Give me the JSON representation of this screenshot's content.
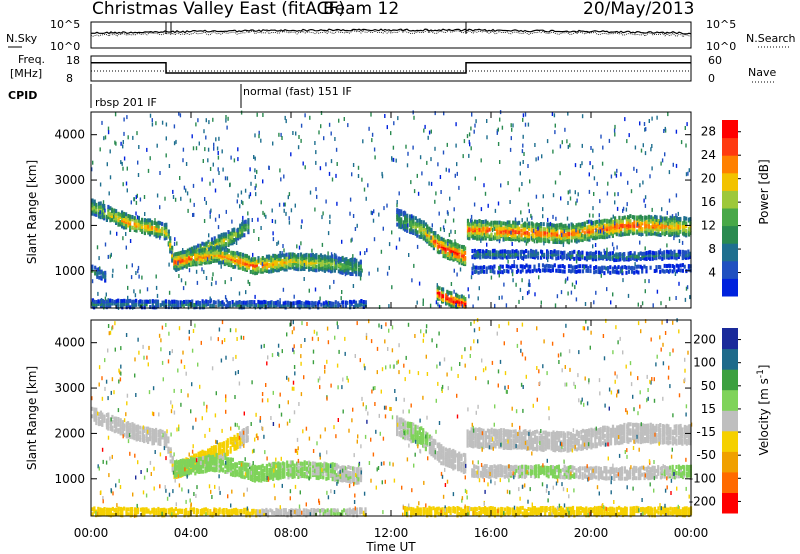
{
  "header": {
    "station": "Christmas Valley East (fitACF)",
    "beam": "Beam 12",
    "date": "20/May/2013"
  },
  "status_panels": {
    "nsky_label": "N.Sky",
    "nsearch_label": "N.Search",
    "freq_label_1": "Freq.",
    "freq_label_2": "[MHz]",
    "nave_label": "Nave",
    "cpid_label": "CPID",
    "noise_left_ticks": [
      "10^5",
      "10^0"
    ],
    "noise_right_ticks": [
      "10^5",
      "10^0"
    ],
    "freq_left_ticks": [
      "18",
      "8"
    ],
    "freq_right_ticks": [
      "60",
      "0"
    ],
    "cpid_modes": [
      {
        "label": "rbsp 201 IF",
        "start_hour": 0,
        "end_hour": 6
      },
      {
        "label": "normal (fast) 151 IF",
        "start_hour": 6,
        "end_hour": 24
      }
    ],
    "freq_segments": [
      {
        "start_hour": 0,
        "end_hour": 3,
        "mhz": 16
      },
      {
        "start_hour": 3,
        "end_hour": 15,
        "mhz": 10.6
      },
      {
        "start_hour": 15,
        "end_hour": 24,
        "mhz": 16
      }
    ]
  },
  "chart_data": [
    {
      "type": "heatmap",
      "name": "power",
      "xlabel": "",
      "ylabel": "Slant Range [km]",
      "xlim": [
        0,
        24
      ],
      "ylim": [
        180,
        4500
      ],
      "y_ticks": [
        "1000",
        "2000",
        "3000",
        "4000"
      ],
      "colorbar": {
        "label": "Power [dB]",
        "ticks": [
          "4",
          "8",
          "12",
          "16",
          "20",
          "24",
          "28"
        ],
        "range": [
          0,
          30
        ],
        "colors": [
          "#0022dd",
          "#2050c0",
          "#1f6f8f",
          "#2a8a50",
          "#48a848",
          "#9dc83a",
          "#f2c200",
          "#ff8000",
          "#ff3a10",
          "#ff0000"
        ]
      },
      "bands": [
        {
          "t": [
            0,
            1.5,
            3,
            3.3,
            5.5,
            6.3
          ],
          "r": [
            2400,
            2050,
            1850,
            1150,
            1700,
            2000
          ],
          "w": 280,
          "db": [
            16,
            24,
            20,
            26,
            18,
            14
          ]
        },
        {
          "t": [
            3.3,
            5,
            6.5,
            8,
            9.5,
            10.8
          ],
          "r": [
            1200,
            1350,
            1100,
            1200,
            1150,
            1050
          ],
          "w": 300,
          "db": [
            26,
            22,
            26,
            20,
            18,
            12
          ]
        },
        {
          "t": [
            0,
            0.6
          ],
          "r": [
            1000,
            850
          ],
          "w": 160,
          "db": [
            12,
            10
          ]
        },
        {
          "t": [
            12.2,
            13.2,
            14.0,
            15.0
          ],
          "r": [
            2150,
            1900,
            1500,
            1300
          ],
          "w": 350,
          "db": [
            10,
            20,
            28,
            28
          ]
        },
        {
          "t": [
            13.8,
            14.4,
            15.0
          ],
          "r": [
            500,
            350,
            250
          ],
          "w": 250,
          "db": [
            30,
            30,
            30
          ]
        },
        {
          "t": [
            15.0,
            17,
            19,
            21.5,
            24
          ],
          "r": [
            1900,
            1850,
            1800,
            2000,
            1950
          ],
          "w": 360,
          "db": [
            24,
            26,
            24,
            26,
            20
          ]
        },
        {
          "t": [
            15.2,
            18,
            21,
            24
          ],
          "r": [
            1350,
            1350,
            1300,
            1350
          ],
          "w": 120,
          "db": [
            10,
            8,
            10,
            8
          ]
        },
        {
          "t": [
            15.2,
            18,
            21,
            24
          ],
          "r": [
            1000,
            1050,
            1000,
            1050
          ],
          "w": 100,
          "db": [
            8,
            6,
            8,
            6
          ]
        },
        {
          "t": [
            0,
            6,
            10,
            11
          ],
          "r": [
            260,
            230,
            220,
            250
          ],
          "w": 120,
          "db": [
            10,
            8,
            6,
            8
          ]
        }
      ]
    },
    {
      "type": "heatmap",
      "name": "velocity",
      "xlabel": "Time UT",
      "ylabel": "Slant Range [km]",
      "xlim": [
        0,
        24
      ],
      "ylim": [
        180,
        4500
      ],
      "x_ticks": [
        "00:00",
        "04:00",
        "08:00",
        "12:00",
        "16:00",
        "20:00",
        "00:00"
      ],
      "y_ticks": [
        "1000",
        "2000",
        "3000",
        "4000"
      ],
      "colorbar": {
        "label": "Velocity [m s^-1]",
        "ticks": [
          "200",
          "100",
          "50",
          "15",
          "-15",
          "-50",
          "-100",
          "-200"
        ],
        "range": [
          -250,
          250
        ],
        "colors": [
          "#1a2a9a",
          "#1e6a8a",
          "#3ca040",
          "#7fd35a",
          "#bfbfbf",
          "#f5d000",
          "#f0a000",
          "#ff6a00",
          "#ff0000"
        ]
      },
      "bands": [
        {
          "t": [
            0,
            1.5,
            3,
            3.3,
            5.5,
            6.3
          ],
          "r": [
            2400,
            2050,
            1850,
            1150,
            1700,
            2000
          ],
          "w": 280,
          "v": [
            0,
            0,
            -10,
            -30,
            -60,
            0
          ]
        },
        {
          "t": [
            3.3,
            5,
            6.5,
            8,
            9.5,
            10.8
          ],
          "r": [
            1200,
            1350,
            1100,
            1200,
            1150,
            1050
          ],
          "w": 300,
          "v": [
            40,
            35,
            40,
            35,
            30,
            20
          ]
        },
        {
          "t": [
            12.2,
            13.2,
            14.0,
            15.0
          ],
          "r": [
            2150,
            1900,
            1500,
            1300
          ],
          "w": 350,
          "v": [
            20,
            40,
            0,
            0
          ]
        },
        {
          "t": [
            15.0,
            17,
            19,
            21.5,
            24
          ],
          "r": [
            1900,
            1850,
            1800,
            2000,
            1950
          ],
          "w": 360,
          "v": [
            0,
            0,
            0,
            0,
            0
          ]
        },
        {
          "t": [
            15.2,
            18,
            21,
            24
          ],
          "r": [
            1150,
            1150,
            1100,
            1150
          ],
          "w": 200,
          "v": [
            0,
            40,
            0,
            40
          ]
        },
        {
          "t": [
            0,
            6,
            10,
            11
          ],
          "r": [
            260,
            230,
            220,
            250
          ],
          "w": 120,
          "v": [
            -60,
            -40,
            40,
            -40
          ]
        },
        {
          "t": [
            12.5,
            24
          ],
          "r": [
            250,
            250
          ],
          "w": 160,
          "v": [
            -50,
            -40
          ]
        }
      ]
    }
  ]
}
